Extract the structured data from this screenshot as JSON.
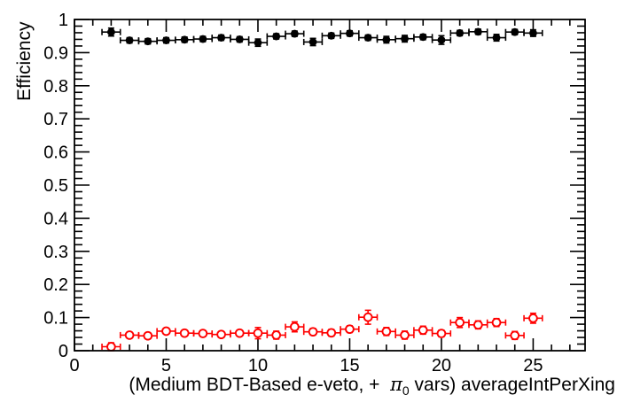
{
  "colors": {
    "background": "#ffffff",
    "frame": "#000000",
    "series_black": "#000000",
    "series_red": "#ff0000"
  },
  "chart_data": {
    "type": "scatter",
    "title": "",
    "ylabel": "Efficiency",
    "xlabel": "(Medium BDT-Based e-veto, +  π₀ vars) averageIntPerXing",
    "xlabel_parts": {
      "prefix": "(Medium BDT-Based e-veto, +  ",
      "pi": "π",
      "pi_sub": "0",
      "suffix": " vars) averageIntPerXing"
    },
    "grid": "off",
    "legend": "none",
    "x_axis": {
      "min": 0,
      "max": 27.83,
      "major_step": 5,
      "minor_step": 1,
      "major_tick_labels": [
        "0",
        "5",
        "10",
        "15",
        "20",
        "25"
      ]
    },
    "y_axis": {
      "min": 0,
      "max": 1,
      "major_step": 0.1,
      "minor_step": 0.02,
      "major_tick_labels": [
        "0",
        "0.1",
        "0.2",
        "0.3",
        "0.4",
        "0.5",
        "0.6",
        "0.7",
        "0.8",
        "0.9",
        "1"
      ]
    },
    "series": [
      {
        "name": "black-filled-circles",
        "marker": "filled-circle",
        "color": "#000000",
        "xerr": 0.5,
        "x": [
          2,
          3,
          4,
          5,
          6,
          7,
          8,
          9,
          10,
          11,
          12,
          13,
          14,
          15,
          16,
          17,
          18,
          19,
          20,
          21,
          22,
          23,
          24,
          25
        ],
        "y": [
          0.962,
          0.937,
          0.934,
          0.937,
          0.939,
          0.941,
          0.945,
          0.94,
          0.93,
          0.949,
          0.957,
          0.932,
          0.951,
          0.958,
          0.945,
          0.939,
          0.942,
          0.947,
          0.938,
          0.959,
          0.963,
          0.945,
          0.962,
          0.959
        ],
        "yerr": [
          0.012,
          0.008,
          0.008,
          0.008,
          0.008,
          0.008,
          0.008,
          0.008,
          0.011,
          0.008,
          0.008,
          0.011,
          0.008,
          0.008,
          0.008,
          0.01,
          0.01,
          0.008,
          0.013,
          0.008,
          0.008,
          0.01,
          0.008,
          0.01
        ]
      },
      {
        "name": "red-open-circles",
        "marker": "open-circle",
        "color": "#ff0000",
        "xerr": 0.5,
        "x": [
          2,
          3,
          4,
          5,
          6,
          7,
          8,
          9,
          10,
          11,
          12,
          13,
          14,
          15,
          16,
          17,
          18,
          19,
          20,
          21,
          22,
          23,
          24,
          25
        ],
        "y": [
          0.012,
          0.047,
          0.045,
          0.059,
          0.053,
          0.052,
          0.049,
          0.053,
          0.053,
          0.047,
          0.072,
          0.057,
          0.054,
          0.065,
          0.101,
          0.058,
          0.047,
          0.062,
          0.052,
          0.085,
          0.078,
          0.085,
          0.046,
          0.098
        ],
        "yerr": [
          0.012,
          0.008,
          0.008,
          0.008,
          0.008,
          0.008,
          0.008,
          0.008,
          0.017,
          0.012,
          0.015,
          0.01,
          0.01,
          0.01,
          0.021,
          0.012,
          0.012,
          0.012,
          0.01,
          0.015,
          0.012,
          0.012,
          0.012,
          0.015
        ]
      }
    ]
  }
}
